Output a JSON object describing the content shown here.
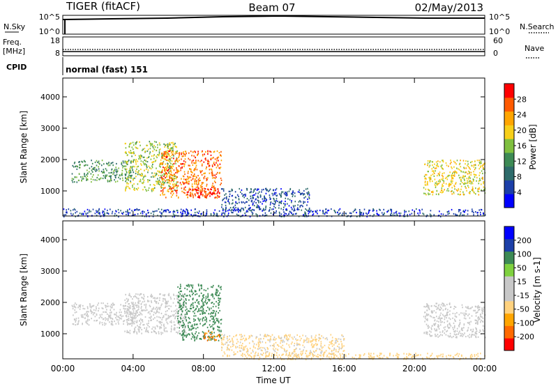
{
  "header": {
    "title": "TIGER (fitACF)",
    "beam": "Beam 07",
    "date": "02/May/2013"
  },
  "strips": {
    "sky": {
      "left_label": "N.Sky",
      "right_label": "N.Search",
      "top_tick": "10^5",
      "bottom_tick": "10^0"
    },
    "freq": {
      "left_label_1": "Freq.",
      "left_label_2": "[MHz]",
      "right_label": "Nave",
      "left_ticks": [
        "18",
        "8"
      ],
      "right_ticks": [
        "60",
        "0"
      ]
    },
    "cpid": {
      "left_label": "CPID",
      "mode_text": "normal (fast) 151"
    }
  },
  "x_axis": {
    "label": "Time UT",
    "ticks": [
      "00:00",
      "04:00",
      "08:00",
      "12:00",
      "16:00",
      "20:00",
      "00:00"
    ]
  },
  "colors": {
    "power_scale": [
      "#0000ff",
      "#1c3fa8",
      "#2e6b6b",
      "#3d8a55",
      "#7fbf3f",
      "#f7cf1a",
      "#ffa500",
      "#ff5a00",
      "#ff0000"
    ],
    "velocity_scale": [
      "#ff0000",
      "#ff6a00",
      "#ffa500",
      "#ffd27f",
      "#c8c8c8",
      "#c8c8c8",
      "#7fd13f",
      "#3d8a55",
      "#1c3fa8",
      "#0000ff"
    ]
  },
  "chart_data": [
    {
      "type": "heatmap",
      "title": "",
      "xlabel": "",
      "ylabel": "Slant Range [km]",
      "yticks": [
        "1000",
        "2000",
        "3000",
        "4000"
      ],
      "ylim": [
        200,
        4600
      ],
      "xlim": [
        0,
        24
      ],
      "colorbar": {
        "label": "Power [dB]",
        "ticks": [
          "4",
          "8",
          "12",
          "16",
          "20",
          "24",
          "28"
        ],
        "range": [
          0,
          30
        ]
      },
      "echo_regions": [
        {
          "t0": 0.5,
          "t1": 4.0,
          "r0": 1300,
          "r1": 2000,
          "value": 12
        },
        {
          "t0": 3.5,
          "t1": 6.5,
          "r0": 1000,
          "r1": 2600,
          "value": 16
        },
        {
          "t0": 5.5,
          "t1": 9.0,
          "r0": 800,
          "r1": 2300,
          "value": 24
        },
        {
          "t0": 7.0,
          "t1": 9.0,
          "r0": 800,
          "r1": 1100,
          "value": 28
        },
        {
          "t0": 9.0,
          "t1": 14.0,
          "r0": 400,
          "r1": 1100,
          "value": 6
        },
        {
          "t0": 0.0,
          "t1": 24.0,
          "r0": 200,
          "r1": 450,
          "value": 5
        },
        {
          "t0": 20.5,
          "t1": 24.0,
          "r0": 900,
          "r1": 2000,
          "value": 18
        }
      ]
    },
    {
      "type": "heatmap",
      "title": "",
      "xlabel": "Time UT",
      "ylabel": "Slant Range [km]",
      "yticks": [
        "1000",
        "2000",
        "3000",
        "4000"
      ],
      "ylim": [
        200,
        4600
      ],
      "xlim": [
        0,
        24
      ],
      "colorbar": {
        "label": "Velocity [m s-1]",
        "ticks": [
          "-200",
          "-100",
          "-50",
          "-15",
          "15",
          "50",
          "100",
          "200"
        ],
        "range": [
          -250,
          250
        ]
      },
      "echo_regions": [
        {
          "t0": 0.5,
          "t1": 4.5,
          "r0": 1300,
          "r1": 2000,
          "value": 0
        },
        {
          "t0": 3.5,
          "t1": 7.0,
          "r0": 1000,
          "r1": 2300,
          "value": 5
        },
        {
          "t0": 6.5,
          "t1": 9.0,
          "r0": 800,
          "r1": 2600,
          "value": 120
        },
        {
          "t0": 8.0,
          "t1": 9.0,
          "r0": 800,
          "r1": 1100,
          "value": -150
        },
        {
          "t0": 9.0,
          "t1": 16.0,
          "r0": 300,
          "r1": 1000,
          "value": -60
        },
        {
          "t0": 10.0,
          "t1": 24.0,
          "r0": 200,
          "r1": 400,
          "value": -70
        },
        {
          "t0": 20.5,
          "t1": 24.0,
          "r0": 900,
          "r1": 2000,
          "value": 30
        }
      ]
    }
  ]
}
